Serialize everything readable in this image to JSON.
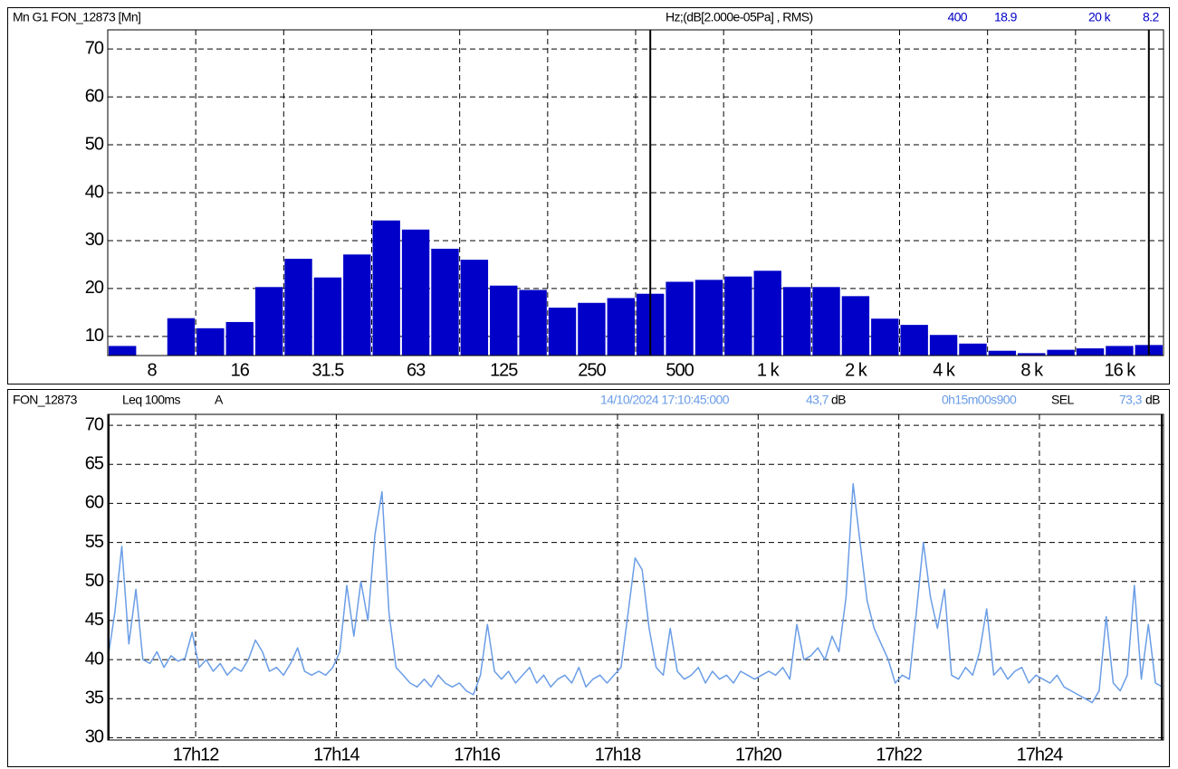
{
  "chart_data": [
    {
      "type": "bar",
      "title": "Mn G1 FON_12873 [Mn]",
      "unit": "Hz;(dB[2.000e-05Pa] , RMS)",
      "cursors": [
        {
          "label": "400",
          "value": 18.9
        },
        {
          "label": "20 k",
          "value": 8.2
        }
      ],
      "categories": [
        null,
        "8",
        null,
        null,
        "16",
        null,
        null,
        "31.5",
        null,
        null,
        "63",
        null,
        null,
        "125",
        null,
        null,
        "250",
        null,
        null,
        "500",
        null,
        null,
        "1 k",
        null,
        null,
        "2 k",
        null,
        null,
        "4 k",
        null,
        null,
        "8 k",
        null,
        null,
        "16 k",
        null
      ],
      "values": [
        8,
        6,
        13.8,
        11.7,
        13,
        20.3,
        26.2,
        22.3,
        27.1,
        34.2,
        32.3,
        28.3,
        26,
        20.6,
        19.7,
        16,
        17,
        18,
        18.9,
        21.4,
        21.8,
        22.5,
        23.7,
        20.3,
        20.3,
        18.4,
        13.7,
        12.4,
        10.3,
        8.5,
        7,
        6.5,
        7.2,
        7.5,
        8,
        8.2
      ],
      "color": "#0000c8",
      "ylim": [
        6,
        74
      ],
      "yticks": [
        10,
        20,
        30,
        40,
        50,
        60,
        70
      ],
      "grid": true
    },
    {
      "type": "line",
      "title": "FON_12873",
      "subtitle": "Leq 100ms",
      "weighting": "A",
      "cursor": {
        "time": "14/10/2024 17:10:45:000",
        "value": "43,7",
        "unit": "dB"
      },
      "duration": "0h15m00s900",
      "sel": {
        "label": "SEL",
        "value": "73,3",
        "unit": "dB"
      },
      "x": [
        61845,
        61851,
        61857,
        61863,
        61869,
        61875,
        61881,
        61887,
        61893,
        61899,
        61905,
        61911,
        61917,
        61923,
        61929,
        61935,
        61941,
        61947,
        61953,
        61959,
        61965,
        61971,
        61977,
        61983,
        61989,
        61995,
        62001,
        62007,
        62013,
        62019,
        62025,
        62031,
        62037,
        62043,
        62049,
        62055,
        62061,
        62067,
        62073,
        62079,
        62085,
        62091,
        62097,
        62103,
        62109,
        62115,
        62121,
        62127,
        62133,
        62139,
        62145,
        62151,
        62157,
        62163,
        62169,
        62175,
        62181,
        62187,
        62193,
        62199,
        62205,
        62211,
        62217,
        62223,
        62229,
        62235,
        62241,
        62247,
        62253,
        62259,
        62265,
        62271,
        62277,
        62283,
        62289,
        62295,
        62301,
        62307,
        62313,
        62319,
        62325,
        62331,
        62337,
        62343,
        62349,
        62355,
        62361,
        62367,
        62373,
        62379,
        62385,
        62391,
        62397,
        62403,
        62409,
        62415,
        62421,
        62427,
        62433,
        62439,
        62445,
        62451,
        62457,
        62463,
        62469,
        62475,
        62481,
        62487,
        62493,
        62499,
        62505,
        62511,
        62517,
        62523,
        62529,
        62535,
        62541,
        62547,
        62553,
        62559,
        62565,
        62571,
        62577,
        62583,
        62589,
        62595,
        62601,
        62607,
        62613,
        62619,
        62625,
        62631,
        62637,
        62643,
        62649,
        62655,
        62661,
        62667,
        62673,
        62679,
        62685,
        62691,
        62697,
        62703,
        62709,
        62715,
        62721,
        62727,
        62733,
        62739,
        62745
      ],
      "series": [
        {
          "color": "#6a9de6",
          "values": [
            40,
            46,
            54.5,
            42,
            49,
            40,
            39.5,
            41,
            39,
            40.5,
            39.8,
            40.2,
            43.5,
            39,
            40,
            38.5,
            39.5,
            38,
            39,
            38.5,
            40,
            42.5,
            41,
            38.5,
            39,
            38,
            39.5,
            41.5,
            38.5,
            38,
            38.5,
            38,
            39,
            41,
            49.5,
            43,
            50,
            45,
            56,
            61.5,
            46,
            39,
            38,
            37,
            36.5,
            37.5,
            36.5,
            38,
            37,
            36.5,
            37,
            36,
            35.5,
            38,
            44.5,
            38.5,
            37.5,
            38.5,
            37,
            38,
            39,
            37,
            38,
            36.5,
            37.5,
            38,
            37,
            39,
            36.5,
            37.5,
            38,
            37,
            38,
            39,
            46,
            53,
            51.5,
            44,
            39,
            38,
            44,
            38.5,
            37.5,
            38,
            39,
            37,
            38.5,
            37.5,
            38,
            37,
            38.5,
            38,
            37.5,
            38,
            38.5,
            38,
            39,
            37.5,
            44.5,
            40,
            40.5,
            41.5,
            40,
            43,
            41,
            48,
            62.5,
            55,
            47.5,
            44,
            42,
            40,
            37,
            38,
            37.5,
            46,
            55,
            48,
            44,
            49,
            38,
            37.5,
            39,
            38,
            41,
            46.5,
            38,
            39,
            37.5,
            38.5,
            39,
            37,
            38,
            37.5,
            37,
            38,
            36.5,
            36,
            35.5,
            35,
            34.5,
            36,
            45.5,
            37,
            36,
            38,
            49.5,
            37.5,
            44.5,
            37,
            36.5
          ]
        }
      ],
      "xlim": [
        61845,
        62745.9
      ],
      "xticks": [
        {
          "value": 61920,
          "label": "17h12"
        },
        {
          "value": 62040,
          "label": "17h14"
        },
        {
          "value": 62160,
          "label": "17h16"
        },
        {
          "value": 62280,
          "label": "17h18"
        },
        {
          "value": 62400,
          "label": "17h20"
        },
        {
          "value": 62520,
          "label": "17h22"
        },
        {
          "value": 62640,
          "label": "17h24"
        }
      ],
      "ylim": [
        29.7,
        71.4
      ],
      "yticks": [
        30,
        35,
        40,
        45,
        50,
        55,
        60,
        65,
        70
      ],
      "grid": true
    }
  ]
}
